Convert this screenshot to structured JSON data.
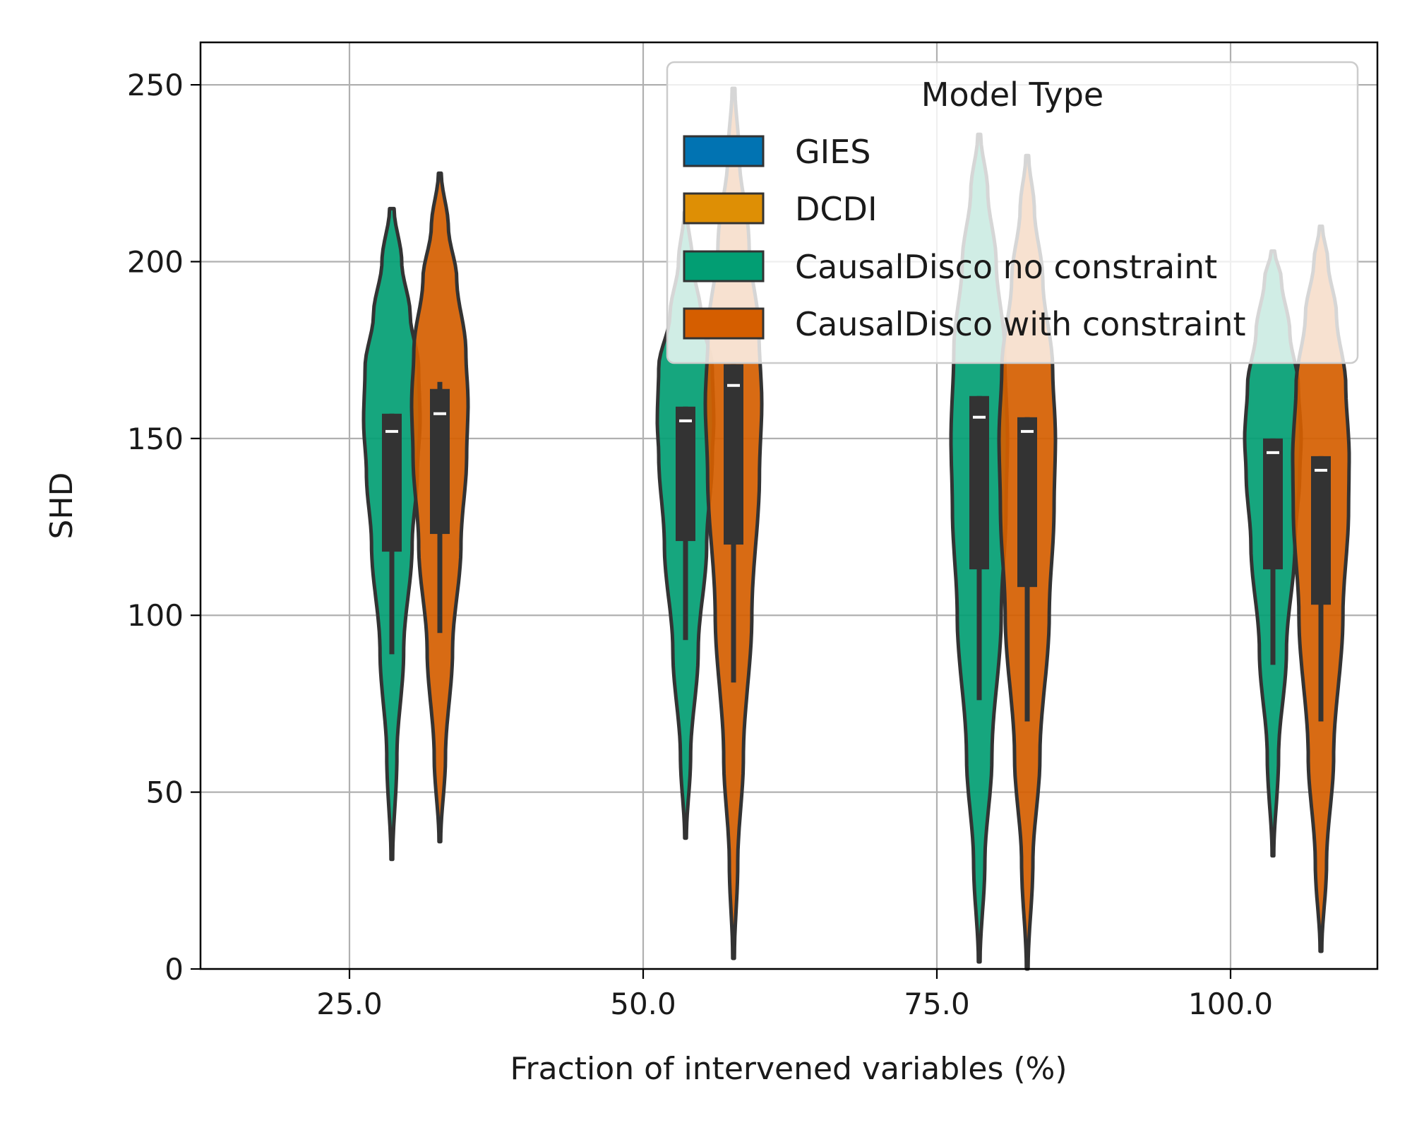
{
  "chart_data": {
    "type": "violin",
    "title": "",
    "xlabel": "Fraction of intervened variables (%)",
    "ylabel": "SHD",
    "categories": [
      "25.0",
      "50.0",
      "75.0",
      "100.0"
    ],
    "yticks": [
      "0",
      "50",
      "100",
      "150",
      "200",
      "250"
    ],
    "ylim": [
      0,
      262
    ],
    "grid": true,
    "legend": {
      "title": "Model Type",
      "placement": "top-right",
      "entries": [
        {
          "name": "GIES",
          "color": "#0173b2"
        },
        {
          "name": "DCDI",
          "color": "#de8f05"
        },
        {
          "name": "CausalDisco no constraint",
          "color": "#029e73"
        },
        {
          "name": "CausalDisco with constraint",
          "color": "#d55e00"
        }
      ]
    },
    "series": [
      {
        "name": "CausalDisco no constraint",
        "color": "#029e73",
        "violins": [
          {
            "category": "25.0",
            "min": 31,
            "max": 215,
            "q1": 118,
            "median": 152,
            "q3": 157,
            "whisker_low": 89,
            "whisker_high": 157,
            "profile": [
              [
                31,
                0.03
              ],
              [
                60,
                0.18
              ],
              [
                90,
                0.42
              ],
              [
                120,
                0.72
              ],
              [
                140,
                0.9
              ],
              [
                155,
                1.0
              ],
              [
                170,
                0.95
              ],
              [
                185,
                0.65
              ],
              [
                200,
                0.35
              ],
              [
                215,
                0.08
              ]
            ]
          },
          {
            "category": "50.0",
            "min": 37,
            "max": 214,
            "q1": 121,
            "median": 155,
            "q3": 159,
            "whisker_low": 93,
            "whisker_high": 159,
            "profile": [
              [
                37,
                0.03
              ],
              [
                60,
                0.18
              ],
              [
                90,
                0.45
              ],
              [
                120,
                0.75
              ],
              [
                145,
                0.95
              ],
              [
                155,
                1.0
              ],
              [
                170,
                0.95
              ],
              [
                185,
                0.55
              ],
              [
                200,
                0.25
              ],
              [
                214,
                0.05
              ]
            ]
          },
          {
            "category": "75.0",
            "min": 2,
            "max": 236,
            "q1": 113,
            "median": 156,
            "q3": 162,
            "whisker_low": 76,
            "whisker_high": 162,
            "profile": [
              [
                2,
                0.03
              ],
              [
                30,
                0.2
              ],
              [
                60,
                0.45
              ],
              [
                100,
                0.78
              ],
              [
                130,
                0.95
              ],
              [
                150,
                1.0
              ],
              [
                175,
                0.9
              ],
              [
                200,
                0.6
              ],
              [
                220,
                0.3
              ],
              [
                236,
                0.05
              ]
            ]
          },
          {
            "category": "100.0",
            "min": 32,
            "max": 203,
            "q1": 113,
            "median": 146,
            "q3": 150,
            "whisker_low": 86,
            "whisker_high": 150,
            "profile": [
              [
                32,
                0.03
              ],
              [
                60,
                0.2
              ],
              [
                90,
                0.48
              ],
              [
                120,
                0.78
              ],
              [
                140,
                0.95
              ],
              [
                150,
                1.0
              ],
              [
                165,
                0.9
              ],
              [
                180,
                0.6
              ],
              [
                195,
                0.3
              ],
              [
                203,
                0.06
              ]
            ]
          }
        ]
      },
      {
        "name": "CausalDisco with constraint",
        "color": "#d55e00",
        "violins": [
          {
            "category": "25.0",
            "min": 36,
            "max": 225,
            "q1": 123,
            "median": 157,
            "q3": 164,
            "whisker_low": 95,
            "whisker_high": 166,
            "profile": [
              [
                36,
                0.03
              ],
              [
                60,
                0.2
              ],
              [
                90,
                0.45
              ],
              [
                120,
                0.75
              ],
              [
                145,
                0.95
              ],
              [
                160,
                1.0
              ],
              [
                175,
                0.92
              ],
              [
                195,
                0.6
              ],
              [
                210,
                0.3
              ],
              [
                225,
                0.05
              ]
            ]
          },
          {
            "category": "50.0",
            "min": 3,
            "max": 249,
            "q1": 120,
            "median": 165,
            "q3": 171,
            "whisker_low": 81,
            "whisker_high": 171,
            "profile": [
              [
                3,
                0.03
              ],
              [
                30,
                0.15
              ],
              [
                60,
                0.35
              ],
              [
                100,
                0.65
              ],
              [
                140,
                0.92
              ],
              [
                160,
                1.0
              ],
              [
                180,
                0.9
              ],
              [
                205,
                0.55
              ],
              [
                230,
                0.2
              ],
              [
                249,
                0.05
              ]
            ]
          },
          {
            "category": "75.0",
            "min": 0,
            "max": 230,
            "q1": 108,
            "median": 152,
            "q3": 156,
            "whisker_low": 70,
            "whisker_high": 156,
            "profile": [
              [
                0,
                0.03
              ],
              [
                30,
                0.2
              ],
              [
                60,
                0.45
              ],
              [
                100,
                0.78
              ],
              [
                130,
                0.95
              ],
              [
                150,
                1.0
              ],
              [
                170,
                0.9
              ],
              [
                195,
                0.55
              ],
              [
                215,
                0.25
              ],
              [
                230,
                0.05
              ]
            ]
          },
          {
            "category": "100.0",
            "min": 5,
            "max": 210,
            "q1": 103,
            "median": 141,
            "q3": 145,
            "whisker_low": 70,
            "whisker_high": 145,
            "profile": [
              [
                5,
                0.03
              ],
              [
                30,
                0.2
              ],
              [
                60,
                0.45
              ],
              [
                100,
                0.78
              ],
              [
                130,
                0.98
              ],
              [
                145,
                1.0
              ],
              [
                165,
                0.88
              ],
              [
                185,
                0.55
              ],
              [
                200,
                0.25
              ],
              [
                210,
                0.05
              ]
            ]
          }
        ]
      }
    ]
  }
}
